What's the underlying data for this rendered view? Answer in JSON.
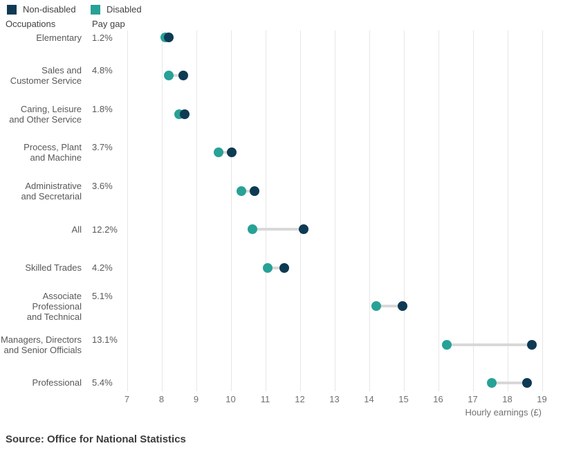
{
  "legend": {
    "items": [
      {
        "label": "Non-disabled",
        "color": "#0e3a53"
      },
      {
        "label": "Disabled",
        "color": "#28a197"
      }
    ]
  },
  "column_headers": {
    "occupations": "Occupations",
    "pay_gap": "Pay gap"
  },
  "x_axis": {
    "title": "Hourly earnings (£)"
  },
  "source": {
    "text": "Source: Office for National Statistics"
  },
  "chart_data": {
    "type": "scatter",
    "variant": "dumbbell",
    "title": "",
    "xlabel": "Hourly earnings (£)",
    "xlim": [
      7,
      19
    ],
    "x_ticks": [
      7,
      8,
      9,
      10,
      11,
      12,
      13,
      14,
      15,
      16,
      17,
      18,
      19
    ],
    "grid": true,
    "legend_position": "top-left",
    "categories": [
      {
        "label_lines": [
          "Elementary"
        ],
        "pay_gap": "1.2%"
      },
      {
        "label_lines": [
          "Sales and",
          "Customer Service"
        ],
        "pay_gap": "4.8%"
      },
      {
        "label_lines": [
          "Caring, Leisure",
          "and Other Service"
        ],
        "pay_gap": "1.8%"
      },
      {
        "label_lines": [
          "Process, Plant",
          "and Machine"
        ],
        "pay_gap": "3.7%"
      },
      {
        "label_lines": [
          "Administrative",
          "and Secretarial"
        ],
        "pay_gap": "3.6%"
      },
      {
        "label_lines": [
          "All"
        ],
        "pay_gap": "12.2%"
      },
      {
        "label_lines": [
          "Skilled Trades"
        ],
        "pay_gap": "4.2%"
      },
      {
        "label_lines": [
          "Associate",
          "Professional",
          "and Technical"
        ],
        "pay_gap": "5.1%"
      },
      {
        "label_lines": [
          "Managers, Directors",
          "and Senior Officials"
        ],
        "pay_gap": "13.1%"
      },
      {
        "label_lines": [
          "Professional"
        ],
        "pay_gap": "5.4%"
      }
    ],
    "series": [
      {
        "name": "Non-disabled",
        "color": "#0e3a53",
        "values": [
          8.2,
          8.62,
          8.66,
          10.02,
          10.68,
          12.11,
          11.55,
          14.96,
          18.71,
          18.56
        ]
      },
      {
        "name": "Disabled",
        "color": "#28a197",
        "values": [
          8.1,
          8.2,
          8.5,
          9.65,
          10.3,
          10.63,
          11.06,
          14.2,
          16.25,
          17.55
        ]
      }
    ],
    "connector_color": "#d8d8d8",
    "gridline_color": "#e6e6e6"
  }
}
